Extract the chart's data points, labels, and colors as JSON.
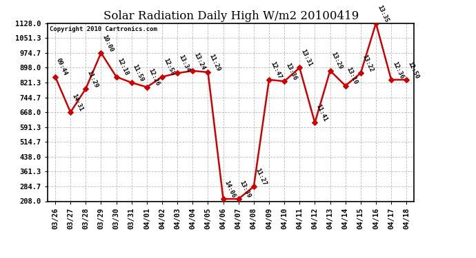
{
  "title": "Solar Radiation Daily High W/m2 20100419",
  "copyright": "Copyright 2010 Cartronics.com",
  "dates": [
    "03/26",
    "03/27",
    "03/28",
    "03/29",
    "03/30",
    "03/31",
    "04/01",
    "04/02",
    "04/03",
    "04/04",
    "04/05",
    "04/06",
    "04/07",
    "04/08",
    "04/09",
    "04/10",
    "04/11",
    "04/12",
    "04/13",
    "04/14",
    "04/15",
    "04/16",
    "04/17",
    "04/18"
  ],
  "values": [
    851,
    668,
    790,
    975,
    851,
    821,
    798,
    851,
    870,
    882,
    875,
    220,
    220,
    284,
    836,
    828,
    898,
    614,
    883,
    805,
    870,
    1128,
    836,
    836
  ],
  "labels": [
    "09:44",
    "14:31",
    "11:29",
    "10:00",
    "12:18",
    "11:59",
    "12:26",
    "12:58",
    "13:34",
    "13:24",
    "11:29",
    "14:06",
    "13:39",
    "11:27",
    "12:47",
    "13:36",
    "13:31",
    "11:41",
    "13:29",
    "13:10",
    "13:22",
    "13:35",
    "12:36",
    "12:50"
  ],
  "line_color": "#cc0000",
  "marker_color": "#cc0000",
  "bg_color": "#ffffff",
  "grid_color": "#bbbbbb",
  "ylim_min": 208.0,
  "ylim_max": 1128.0,
  "ytick_labels": [
    "208.0",
    "284.7",
    "361.3",
    "438.0",
    "514.7",
    "591.3",
    "668.0",
    "744.7",
    "821.3",
    "898.0",
    "974.7",
    "1051.3",
    "1128.0"
  ],
  "ytick_values": [
    208.0,
    284.7,
    361.3,
    438.0,
    514.7,
    591.3,
    668.0,
    744.7,
    821.3,
    898.0,
    974.7,
    1051.3,
    1128.0
  ],
  "title_fontsize": 12,
  "label_fontsize": 6.5,
  "tick_fontsize": 7.5,
  "copyright_fontsize": 6.5,
  "linewidth": 1.8,
  "marker_size": 15
}
